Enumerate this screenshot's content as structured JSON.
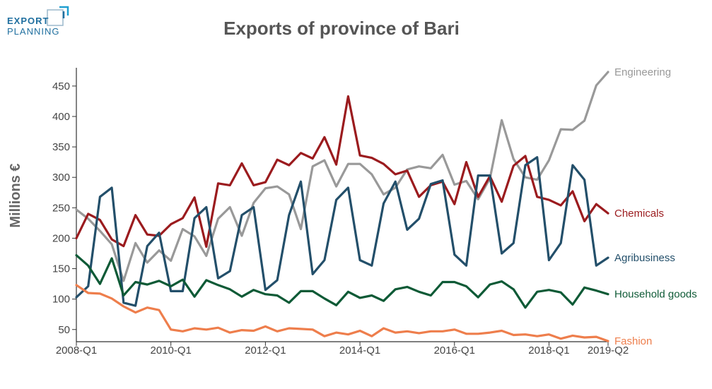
{
  "logo": {
    "line1": "EXPORT",
    "line2": "PLANNING",
    "color": "#1f6f9f"
  },
  "chart_data": {
    "type": "line",
    "title": "Exports of province of Bari",
    "ylabel": "Millions €",
    "xlabel": "",
    "ylim": [
      30,
      480
    ],
    "yticks": [
      50,
      100,
      150,
      200,
      250,
      300,
      350,
      400,
      450
    ],
    "x": [
      "2008-Q1",
      "2008-Q2",
      "2008-Q3",
      "2008-Q4",
      "2009-Q1",
      "2009-Q2",
      "2009-Q3",
      "2009-Q4",
      "2010-Q1",
      "2010-Q2",
      "2010-Q3",
      "2010-Q4",
      "2011-Q1",
      "2011-Q2",
      "2011-Q3",
      "2011-Q4",
      "2012-Q1",
      "2012-Q2",
      "2012-Q3",
      "2012-Q4",
      "2013-Q1",
      "2013-Q2",
      "2013-Q3",
      "2013-Q4",
      "2014-Q1",
      "2014-Q2",
      "2014-Q3",
      "2014-Q4",
      "2015-Q1",
      "2015-Q2",
      "2015-Q3",
      "2015-Q4",
      "2016-Q1",
      "2016-Q2",
      "2016-Q3",
      "2016-Q4",
      "2017-Q1",
      "2017-Q2",
      "2017-Q3",
      "2017-Q4",
      "2018-Q1",
      "2018-Q2",
      "2018-Q3",
      "2018-Q4",
      "2019-Q1",
      "2019-Q2"
    ],
    "xtick_labels": [
      {
        "index": 0,
        "label": "2008-Q1"
      },
      {
        "index": 8,
        "label": "2010-Q1"
      },
      {
        "index": 16,
        "label": "2012-Q1"
      },
      {
        "index": 24,
        "label": "2014-Q1"
      },
      {
        "index": 32,
        "label": "2016-Q1"
      },
      {
        "index": 40,
        "label": "2018-Q1"
      },
      {
        "index": 45,
        "label": "2019-Q2"
      }
    ],
    "series": [
      {
        "name": "Engineering",
        "color": "#999999",
        "values": [
          247,
          232,
          212,
          190,
          130,
          192,
          160,
          180,
          163,
          215,
          203,
          171,
          232,
          251,
          204,
          258,
          282,
          285,
          272,
          215,
          318,
          328,
          285,
          322,
          322,
          305,
          272,
          283,
          313,
          318,
          315,
          337,
          288,
          294,
          264,
          298,
          394,
          330,
          300,
          296,
          328,
          379,
          378,
          393,
          451,
          473
        ]
      },
      {
        "name": "Chemicals",
        "color": "#9b1b1e",
        "values": [
          200,
          240,
          230,
          198,
          187,
          238,
          206,
          204,
          223,
          233,
          267,
          186,
          290,
          287,
          323,
          287,
          292,
          329,
          320,
          340,
          331,
          366,
          321,
          433,
          336,
          332,
          322,
          305,
          311,
          268,
          287,
          293,
          256,
          325,
          268,
          302,
          260,
          319,
          335,
          268,
          263,
          254,
          277,
          228,
          256,
          241
        ]
      },
      {
        "name": "Agribusiness",
        "color": "#234f6a",
        "values": [
          103,
          121,
          268,
          283,
          94,
          89,
          187,
          209,
          113,
          113,
          233,
          251,
          134,
          146,
          238,
          251,
          115,
          131,
          238,
          293,
          141,
          164,
          263,
          283,
          164,
          155,
          257,
          293,
          214,
          232,
          289,
          295,
          173,
          155,
          303,
          303,
          175,
          192,
          320,
          333,
          164,
          192,
          320,
          296,
          155,
          168
        ]
      },
      {
        "name": "Household goods",
        "color": "#0e5a36",
        "values": [
          172,
          155,
          125,
          167,
          106,
          128,
          124,
          130,
          121,
          132,
          104,
          131,
          123,
          116,
          104,
          115,
          108,
          106,
          94,
          113,
          113,
          101,
          90,
          112,
          102,
          106,
          97,
          116,
          120,
          112,
          106,
          128,
          128,
          121,
          103,
          124,
          129,
          116,
          86,
          112,
          115,
          111,
          91,
          119,
          114,
          108
        ]
      },
      {
        "name": "Fashion",
        "color": "#ee7e4c",
        "values": [
          123,
          110,
          109,
          101,
          88,
          78,
          86,
          82,
          50,
          47,
          52,
          50,
          53,
          45,
          49,
          48,
          55,
          47,
          52,
          51,
          50,
          39,
          45,
          42,
          48,
          39,
          52,
          45,
          47,
          44,
          47,
          47,
          50,
          43,
          43,
          45,
          48,
          41,
          42,
          39,
          42,
          35,
          40,
          37,
          38,
          31
        ]
      }
    ]
  }
}
